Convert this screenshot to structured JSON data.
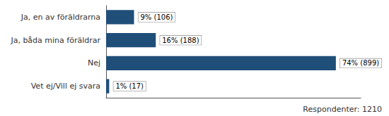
{
  "chart_data": {
    "type": "bar",
    "orientation": "horizontal",
    "categories": [
      "Ja, en av föräldrarna",
      "Ja, båda mina föräldrar",
      "Nej",
      "Vet ej/Vill ej svara"
    ],
    "values": [
      9,
      16,
      74,
      1
    ],
    "value_labels": [
      "9% (106)",
      "16% (188)",
      "74% (899)",
      "1% (17)"
    ],
    "data_labels": true,
    "color": "#1F4E79",
    "xlim": [
      0,
      82
    ],
    "tick_labels": "y",
    "grid": false,
    "annotations": [
      "Respondenter: 1210"
    ]
  }
}
